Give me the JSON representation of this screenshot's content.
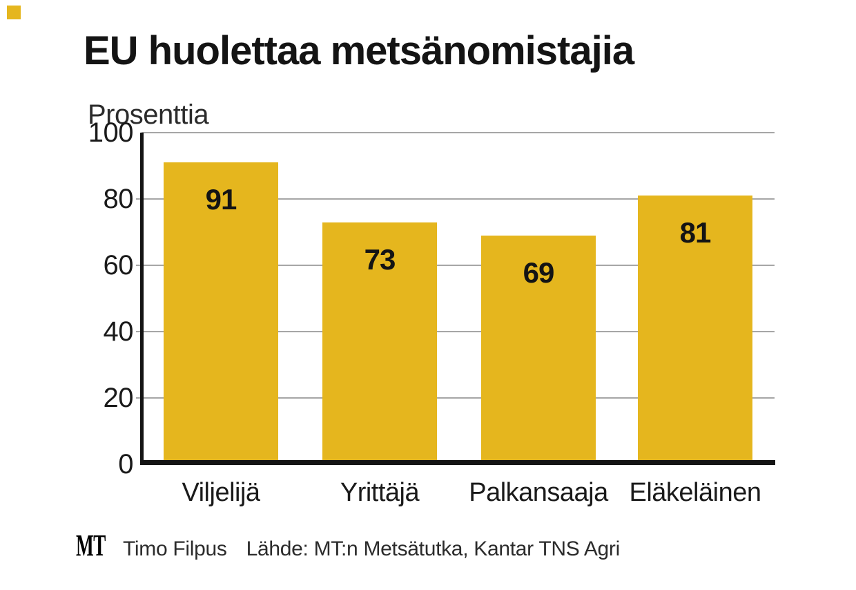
{
  "page": {
    "background": "#ffffff"
  },
  "header": {
    "brand_square_color": "#E5B61E",
    "title": "EU huolettaa metsänomistajia",
    "unit_label": "Prosenttia"
  },
  "chart_data": {
    "type": "bar",
    "title": "EU huolettaa metsänomistajia",
    "ylabel": "Prosenttia",
    "categories": [
      "Viljelijä",
      "Yrittäjä",
      "Palkansaaja",
      "Eläkeläinen"
    ],
    "values": [
      91,
      73,
      69,
      81
    ],
    "ylim": [
      0,
      100
    ],
    "yticks": [
      0,
      20,
      40,
      60,
      80,
      100
    ],
    "grid": true,
    "legend_position": "none",
    "bar_color": "#E5B61E",
    "gridline_color": "#A6A6A6",
    "axis_color": "#141414",
    "value_label_color": "#141414"
  },
  "footer": {
    "logo": "MT",
    "credit": "Timo Filpus",
    "source": "Lähde: MT:n Metsätutka, Kantar TNS Agri"
  }
}
